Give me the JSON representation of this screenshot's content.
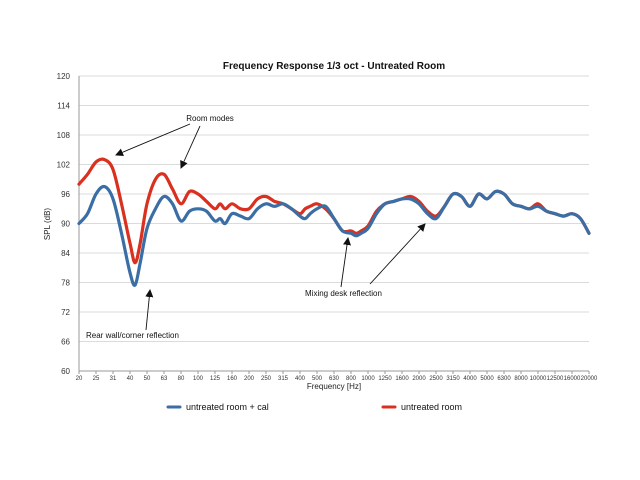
{
  "chart_data": {
    "type": "line",
    "title": "Frequency Response 1/3 oct - Untreated Room",
    "xlabel": "Frequency [Hz]",
    "ylabel": "SPL (dB)",
    "ylim": [
      60,
      120
    ],
    "yticks": [
      60,
      66,
      72,
      78,
      84,
      90,
      96,
      102,
      108,
      114,
      120
    ],
    "categories": [
      "20",
      "25",
      "31",
      "40",
      "50",
      "63",
      "80",
      "100",
      "125",
      "160",
      "200",
      "250",
      "315",
      "400",
      "500",
      "630",
      "800",
      "1000",
      "1250",
      "1600",
      "2000",
      "2500",
      "3150",
      "4000",
      "5000",
      "6300",
      "8000",
      "10000",
      "12500",
      "16000",
      "20000"
    ],
    "grid": true,
    "legend_position": "bottom",
    "series": [
      {
        "name": "untreated room + cal",
        "color": "#3a6ea5",
        "points": [
          [
            0,
            90
          ],
          [
            0.5,
            92
          ],
          [
            1,
            96
          ],
          [
            1.5,
            97.5
          ],
          [
            2,
            95
          ],
          [
            2.5,
            88
          ],
          [
            3,
            80
          ],
          [
            3.3,
            77.5
          ],
          [
            3.6,
            82
          ],
          [
            4,
            89
          ],
          [
            4.5,
            93
          ],
          [
            5,
            95.5
          ],
          [
            5.5,
            94
          ],
          [
            6,
            90.5
          ],
          [
            6.5,
            92.5
          ],
          [
            7,
            93
          ],
          [
            7.5,
            92.5
          ],
          [
            8,
            90.5
          ],
          [
            8.3,
            91
          ],
          [
            8.6,
            90
          ],
          [
            9,
            92
          ],
          [
            9.5,
            91.5
          ],
          [
            10,
            91
          ],
          [
            10.5,
            93
          ],
          [
            11,
            94
          ],
          [
            11.5,
            93.5
          ],
          [
            12,
            94
          ],
          [
            12.5,
            93
          ],
          [
            13,
            91.5
          ],
          [
            13.3,
            91
          ],
          [
            13.6,
            92
          ],
          [
            14,
            93
          ],
          [
            14.5,
            93.5
          ],
          [
            15,
            91
          ],
          [
            15.5,
            88.5
          ],
          [
            16,
            88
          ],
          [
            16.3,
            87.5
          ],
          [
            16.6,
            88
          ],
          [
            17,
            89
          ],
          [
            17.5,
            92
          ],
          [
            18,
            94
          ],
          [
            18.5,
            94.5
          ],
          [
            19,
            95
          ],
          [
            19.5,
            95
          ],
          [
            20,
            94
          ],
          [
            20.5,
            92
          ],
          [
            21,
            91
          ],
          [
            21.5,
            93.5
          ],
          [
            22,
            96
          ],
          [
            22.5,
            95.5
          ],
          [
            23,
            93.5
          ],
          [
            23.5,
            96
          ],
          [
            24,
            95
          ],
          [
            24.5,
            96.5
          ],
          [
            25,
            96
          ],
          [
            25.5,
            94
          ],
          [
            26,
            93.5
          ],
          [
            26.5,
            93
          ],
          [
            27,
            93.5
          ],
          [
            27.5,
            92.5
          ],
          [
            28,
            92
          ],
          [
            28.5,
            91.5
          ],
          [
            29,
            92
          ],
          [
            29.5,
            91
          ],
          [
            30,
            88
          ]
        ]
      },
      {
        "name": "untreated room",
        "color": "#d9301f",
        "points": [
          [
            0,
            98
          ],
          [
            0.5,
            100
          ],
          [
            1,
            102.5
          ],
          [
            1.5,
            103
          ],
          [
            2,
            101
          ],
          [
            2.5,
            94
          ],
          [
            3,
            86
          ],
          [
            3.3,
            82
          ],
          [
            3.6,
            86
          ],
          [
            4,
            94
          ],
          [
            4.5,
            99
          ],
          [
            5,
            100
          ],
          [
            5.5,
            97
          ],
          [
            6,
            94
          ],
          [
            6.5,
            96.5
          ],
          [
            7,
            96
          ],
          [
            7.5,
            94.5
          ],
          [
            8,
            93
          ],
          [
            8.3,
            94
          ],
          [
            8.6,
            93
          ],
          [
            9,
            94
          ],
          [
            9.5,
            93
          ],
          [
            10,
            93
          ],
          [
            10.5,
            95
          ],
          [
            11,
            95.5
          ],
          [
            11.5,
            94.5
          ],
          [
            12,
            94
          ],
          [
            12.5,
            93
          ],
          [
            13,
            92
          ],
          [
            13.3,
            93
          ],
          [
            13.6,
            93.5
          ],
          [
            14,
            94
          ],
          [
            14.5,
            93
          ],
          [
            15,
            91
          ],
          [
            15.5,
            88.5
          ],
          [
            16,
            88.5
          ],
          [
            16.3,
            88
          ],
          [
            16.6,
            88.5
          ],
          [
            17,
            89.5
          ],
          [
            17.5,
            92.5
          ],
          [
            18,
            94
          ],
          [
            18.5,
            94.5
          ],
          [
            19,
            95
          ],
          [
            19.5,
            95.5
          ],
          [
            20,
            94.5
          ],
          [
            20.5,
            92.5
          ],
          [
            21,
            91.5
          ],
          [
            21.5,
            93.5
          ],
          [
            22,
            96
          ],
          [
            22.5,
            95.5
          ],
          [
            23,
            93.5
          ],
          [
            23.5,
            96
          ],
          [
            24,
            95
          ],
          [
            24.5,
            96.5
          ],
          [
            25,
            96
          ],
          [
            25.5,
            94
          ],
          [
            26,
            93.5
          ],
          [
            26.5,
            93
          ],
          [
            27,
            94
          ],
          [
            27.5,
            92.5
          ],
          [
            28,
            92
          ],
          [
            28.5,
            91.5
          ],
          [
            29,
            92
          ],
          [
            29.5,
            91
          ],
          [
            30,
            88
          ]
        ]
      }
    ],
    "annotations": [
      {
        "text": "Room modes"
      },
      {
        "text": "Rear wall/corner reflection"
      },
      {
        "text": "Mixing desk reflection"
      }
    ]
  }
}
